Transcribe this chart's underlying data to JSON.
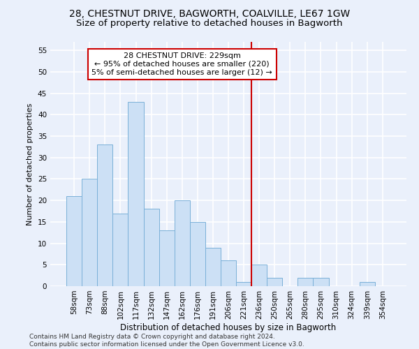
{
  "title": "28, CHESTNUT DRIVE, BAGWORTH, COALVILLE, LE67 1GW",
  "subtitle": "Size of property relative to detached houses in Bagworth",
  "xlabel": "Distribution of detached houses by size in Bagworth",
  "ylabel": "Number of detached properties",
  "categories": [
    "58sqm",
    "73sqm",
    "88sqm",
    "102sqm",
    "117sqm",
    "132sqm",
    "147sqm",
    "162sqm",
    "176sqm",
    "191sqm",
    "206sqm",
    "221sqm",
    "236sqm",
    "250sqm",
    "265sqm",
    "280sqm",
    "295sqm",
    "310sqm",
    "324sqm",
    "339sqm",
    "354sqm"
  ],
  "values": [
    21,
    25,
    33,
    17,
    43,
    18,
    13,
    20,
    15,
    9,
    6,
    1,
    5,
    2,
    0,
    2,
    2,
    0,
    0,
    1,
    0
  ],
  "bar_color": "#cce0f5",
  "bar_edge_color": "#7ab0d8",
  "background_color": "#eaf0fb",
  "grid_color": "#ffffff",
  "vline_x_index": 11.5,
  "vline_color": "#cc0000",
  "annotation_line1": "28 CHESTNUT DRIVE: 229sqm",
  "annotation_line2": "← 95% of detached houses are smaller (220)",
  "annotation_line3": "5% of semi-detached houses are larger (12) →",
  "annotation_box_color": "#cc0000",
  "ylim": [
    0,
    57
  ],
  "yticks": [
    0,
    5,
    10,
    15,
    20,
    25,
    30,
    35,
    40,
    45,
    50,
    55
  ],
  "footer": "Contains HM Land Registry data © Crown copyright and database right 2024.\nContains public sector information licensed under the Open Government Licence v3.0.",
  "title_fontsize": 10,
  "subtitle_fontsize": 9.5,
  "xlabel_fontsize": 8.5,
  "ylabel_fontsize": 8,
  "tick_fontsize": 7.5,
  "annot_fontsize": 8,
  "footer_fontsize": 6.5
}
